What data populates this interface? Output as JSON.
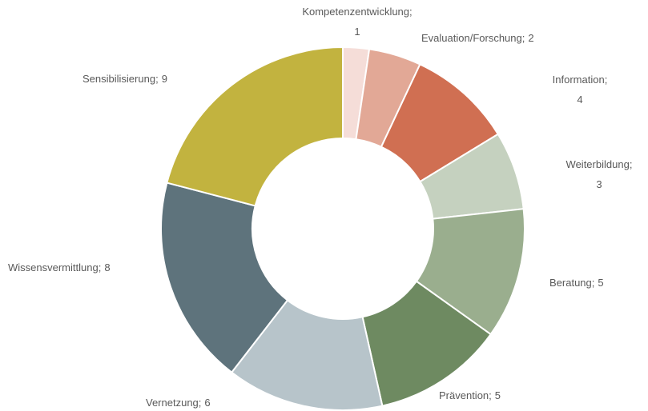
{
  "chart_data": {
    "type": "donut",
    "categories": [
      "Kompetenzentwicklung",
      "Evaluation/Forschung",
      "Information",
      "Weiterbildung",
      "Beratung",
      "Prävention",
      "Vernetzung",
      "Wissensvermittlung",
      "Sensibilisierung"
    ],
    "values": [
      1,
      2,
      4,
      3,
      5,
      5,
      6,
      8,
      9
    ],
    "colors": [
      "#f5ddd8",
      "#e2a896",
      "#d06f52",
      "#c5d1bf",
      "#9aae8e",
      "#6e8a61",
      "#b7c4ca",
      "#5e737c",
      "#c2b33f"
    ],
    "label_separator": ";"
  }
}
